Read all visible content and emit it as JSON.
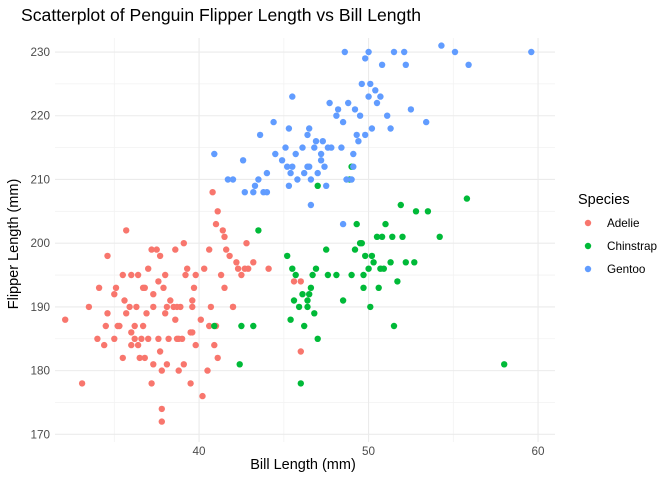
{
  "chart_data": {
    "type": "scatter",
    "title": "Scatterplot of Penguin Flipper Length vs Bill Length",
    "xlabel": "Bill Length (mm)",
    "ylabel": "Flipper Length (mm)",
    "xlim": [
      31.5,
      61.0
    ],
    "ylim": [
      168.8,
      232.2
    ],
    "x_ticks": [
      40,
      50,
      60
    ],
    "y_ticks": [
      170,
      180,
      190,
      200,
      210,
      220,
      230
    ],
    "grid": true,
    "legend": {
      "title": "Species",
      "position": "right"
    },
    "series": [
      {
        "name": "Adelie",
        "color": "#F8766D",
        "points": [
          [
            32.1,
            188
          ],
          [
            33.1,
            178
          ],
          [
            33.5,
            190
          ],
          [
            34.0,
            185
          ],
          [
            34.1,
            193
          ],
          [
            34.4,
            184
          ],
          [
            34.5,
            187
          ],
          [
            34.6,
            189
          ],
          [
            34.6,
            198
          ],
          [
            35.0,
            192
          ],
          [
            35.0,
            185
          ],
          [
            35.1,
            193
          ],
          [
            35.2,
            187
          ],
          [
            35.3,
            187
          ],
          [
            35.5,
            195
          ],
          [
            35.5,
            182
          ],
          [
            35.6,
            191
          ],
          [
            35.7,
            202
          ],
          [
            35.7,
            189
          ],
          [
            35.9,
            190
          ],
          [
            36.0,
            186
          ],
          [
            36.0,
            195
          ],
          [
            36.0,
            184
          ],
          [
            36.2,
            187
          ],
          [
            36.2,
            185
          ],
          [
            36.3,
            190
          ],
          [
            36.4,
            184
          ],
          [
            36.4,
            195
          ],
          [
            36.5,
            182
          ],
          [
            36.6,
            185
          ],
          [
            36.7,
            187
          ],
          [
            36.7,
            193
          ],
          [
            36.8,
            193
          ],
          [
            36.9,
            189
          ],
          [
            37.0,
            185
          ],
          [
            37.2,
            178
          ],
          [
            37.2,
            199
          ],
          [
            37.3,
            192
          ],
          [
            37.3,
            190
          ],
          [
            37.3,
            181
          ],
          [
            37.5,
            199
          ],
          [
            37.6,
            194
          ],
          [
            37.6,
            185
          ],
          [
            37.7,
            198
          ],
          [
            37.7,
            183
          ],
          [
            37.8,
            174
          ],
          [
            37.8,
            180
          ],
          [
            37.8,
            172
          ],
          [
            37.9,
            193
          ],
          [
            38.0,
            195
          ],
          [
            38.1,
            181
          ],
          [
            38.1,
            190
          ],
          [
            38.2,
            185
          ],
          [
            38.3,
            191
          ],
          [
            38.5,
            190
          ],
          [
            38.6,
            188
          ],
          [
            38.6,
            199
          ],
          [
            38.7,
            190
          ],
          [
            38.8,
            180
          ],
          [
            38.9,
            190
          ],
          [
            39.0,
            185
          ],
          [
            39.1,
            181
          ],
          [
            39.2,
            195
          ],
          [
            39.3,
            196
          ],
          [
            39.5,
            178
          ],
          [
            39.5,
            186
          ],
          [
            39.6,
            186
          ],
          [
            39.6,
            190
          ],
          [
            39.7,
            193
          ],
          [
            39.8,
            184
          ],
          [
            39.8,
            195
          ],
          [
            40.1,
            188
          ],
          [
            40.2,
            176
          ],
          [
            40.3,
            196
          ],
          [
            40.5,
            180
          ],
          [
            40.6,
            199
          ],
          [
            40.7,
            190
          ],
          [
            40.8,
            208
          ],
          [
            40.9,
            184
          ],
          [
            41.0,
            203
          ],
          [
            41.1,
            205
          ],
          [
            41.1,
            182
          ],
          [
            41.3,
            195
          ],
          [
            41.4,
            202
          ],
          [
            41.5,
            201
          ],
          [
            41.6,
            199
          ],
          [
            41.8,
            198
          ],
          [
            42.0,
            190
          ],
          [
            42.2,
            197
          ],
          [
            42.3,
            196
          ],
          [
            42.5,
            195
          ],
          [
            42.7,
            196
          ],
          [
            42.8,
            200
          ],
          [
            42.9,
            196
          ],
          [
            43.2,
            197
          ],
          [
            44.1,
            196
          ],
          [
            45.6,
            194
          ],
          [
            46.0,
            194
          ],
          [
            46.0,
            183
          ],
          [
            41.0,
            187
          ],
          [
            42.0,
            190
          ],
          [
            38.7,
            185
          ],
          [
            40.6,
            187
          ],
          [
            38.0,
            189
          ],
          [
            36.8,
            182
          ],
          [
            39.6,
            191
          ],
          [
            37.0,
            196
          ],
          [
            39.1,
            200
          ],
          [
            38.8,
            185
          ],
          [
            41.5,
            193
          ]
        ]
      },
      {
        "name": "Chinstrap",
        "color": "#00BA38",
        "points": [
          [
            40.9,
            187
          ],
          [
            42.4,
            181
          ],
          [
            42.5,
            187
          ],
          [
            43.2,
            187
          ],
          [
            43.5,
            202
          ],
          [
            45.2,
            198
          ],
          [
            45.4,
            188
          ],
          [
            45.5,
            196
          ],
          [
            45.6,
            191
          ],
          [
            45.7,
            195
          ],
          [
            45.9,
            190
          ],
          [
            46.0,
            178
          ],
          [
            46.1,
            192
          ],
          [
            46.2,
            187
          ],
          [
            46.4,
            190
          ],
          [
            46.5,
            192
          ],
          [
            46.6,
            193
          ],
          [
            46.7,
            195
          ],
          [
            46.8,
            189
          ],
          [
            46.9,
            196
          ],
          [
            47.0,
            185
          ],
          [
            47.5,
            199
          ],
          [
            47.6,
            195
          ],
          [
            48.1,
            195
          ],
          [
            48.5,
            191
          ],
          [
            49.0,
            195
          ],
          [
            49.2,
            199
          ],
          [
            49.3,
            203
          ],
          [
            49.5,
            200
          ],
          [
            49.6,
            200
          ],
          [
            49.7,
            193
          ],
          [
            49.8,
            198
          ],
          [
            50.0,
            196
          ],
          [
            50.1,
            190
          ],
          [
            50.2,
            198
          ],
          [
            50.3,
            197
          ],
          [
            50.5,
            201
          ],
          [
            50.6,
            193
          ],
          [
            50.7,
            196
          ],
          [
            50.8,
            201
          ],
          [
            51.0,
            203
          ],
          [
            51.3,
            197
          ],
          [
            51.4,
            201
          ],
          [
            51.5,
            187
          ],
          [
            51.7,
            194
          ],
          [
            51.9,
            206
          ],
          [
            52.0,
            201
          ],
          [
            52.2,
            197
          ],
          [
            52.7,
            197
          ],
          [
            52.8,
            205
          ],
          [
            53.5,
            205
          ],
          [
            54.2,
            201
          ],
          [
            55.8,
            207
          ],
          [
            58.0,
            181
          ],
          [
            49.0,
            212
          ],
          [
            50.9,
            196
          ],
          [
            49.7,
            195
          ],
          [
            46.4,
            191
          ],
          [
            47.0,
            209
          ],
          [
            48.9,
            210
          ]
        ]
      },
      {
        "name": "Gentoo",
        "color": "#619CFF",
        "points": [
          [
            40.9,
            214
          ],
          [
            41.7,
            210
          ],
          [
            42.0,
            210
          ],
          [
            42.6,
            213
          ],
          [
            42.7,
            208
          ],
          [
            43.2,
            208
          ],
          [
            43.3,
            209
          ],
          [
            43.5,
            210
          ],
          [
            43.6,
            217
          ],
          [
            43.8,
            208
          ],
          [
            44.0,
            208
          ],
          [
            44.4,
            219
          ],
          [
            44.5,
            214
          ],
          [
            44.9,
            213
          ],
          [
            45.1,
            215
          ],
          [
            45.2,
            212
          ],
          [
            45.3,
            209
          ],
          [
            45.4,
            211
          ],
          [
            45.5,
            212
          ],
          [
            45.7,
            214
          ],
          [
            45.8,
            210
          ],
          [
            46.1,
            215
          ],
          [
            46.2,
            211
          ],
          [
            46.4,
            217
          ],
          [
            46.5,
            212
          ],
          [
            46.6,
            210
          ],
          [
            46.8,
            215
          ],
          [
            46.9,
            216
          ],
          [
            47.2,
            214
          ],
          [
            47.3,
            216
          ],
          [
            47.4,
            212
          ],
          [
            47.5,
            209
          ],
          [
            47.6,
            215
          ],
          [
            47.7,
            222
          ],
          [
            47.8,
            215
          ],
          [
            48.1,
            220
          ],
          [
            48.2,
            221
          ],
          [
            48.4,
            215
          ],
          [
            48.5,
            219
          ],
          [
            48.6,
            230
          ],
          [
            48.7,
            210
          ],
          [
            48.8,
            222
          ],
          [
            49.0,
            210
          ],
          [
            49.1,
            212
          ],
          [
            49.2,
            221
          ],
          [
            49.3,
            217
          ],
          [
            49.4,
            216
          ],
          [
            49.5,
            220
          ],
          [
            49.6,
            225
          ],
          [
            49.8,
            229
          ],
          [
            50.0,
            223
          ],
          [
            50.1,
            225
          ],
          [
            50.2,
            218
          ],
          [
            50.4,
            224
          ],
          [
            50.5,
            222
          ],
          [
            50.7,
            223
          ],
          [
            50.8,
            228
          ],
          [
            51.1,
            220
          ],
          [
            51.3,
            218
          ],
          [
            51.5,
            230
          ],
          [
            52.1,
            230
          ],
          [
            52.2,
            228
          ],
          [
            52.5,
            221
          ],
          [
            53.4,
            219
          ],
          [
            54.3,
            231
          ],
          [
            55.1,
            230
          ],
          [
            55.9,
            228
          ],
          [
            59.6,
            230
          ],
          [
            48.5,
            203
          ],
          [
            49.1,
            214
          ],
          [
            45.5,
            223
          ],
          [
            46.4,
            212
          ],
          [
            46.6,
            206
          ],
          [
            47.0,
            211
          ],
          [
            44.0,
            211
          ],
          [
            45.3,
            218
          ],
          [
            46.5,
            218
          ],
          [
            47.2,
            213
          ],
          [
            50.0,
            230
          ],
          [
            49.8,
            217
          ]
        ]
      }
    ]
  }
}
